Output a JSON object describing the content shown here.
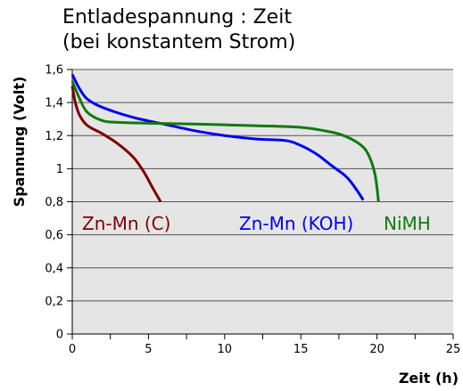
{
  "chart_data": {
    "type": "line",
    "title_lines": [
      "Entladespannung : Zeit",
      "(bei konstantem Strom)"
    ],
    "xlabel": "Zeit (h)",
    "ylabel": "Spannung (Volt)",
    "xlim": [
      0,
      25
    ],
    "ylim": [
      0,
      1.6
    ],
    "x_ticks": [
      0,
      5,
      10,
      15,
      20,
      25
    ],
    "x_tick_labels": [
      "0",
      "5",
      "10",
      "15",
      "20",
      "25"
    ],
    "y_ticks": [
      0,
      0.2,
      0.4,
      0.6,
      0.8,
      1.0,
      1.2,
      1.4,
      1.6
    ],
    "y_tick_labels": [
      "0",
      "0,2",
      "0,4",
      "0,6",
      "0,8",
      "1",
      "1,2",
      "1,4",
      "1,6"
    ],
    "grid": "horizontal",
    "background": "#e5e5e5",
    "series": [
      {
        "name": "Zn-Mn (C)",
        "color": "#7f0000",
        "points": [
          [
            0,
            1.5
          ],
          [
            0.2,
            1.4
          ],
          [
            0.5,
            1.32
          ],
          [
            1,
            1.26
          ],
          [
            2,
            1.21
          ],
          [
            3,
            1.15
          ],
          [
            4,
            1.07
          ],
          [
            4.7,
            0.98
          ],
          [
            5.3,
            0.88
          ],
          [
            5.8,
            0.8
          ]
        ]
      },
      {
        "name": "Zn-Mn (KOH)",
        "color": "#0000ee",
        "points": [
          [
            0,
            1.57
          ],
          [
            0.5,
            1.48
          ],
          [
            1,
            1.42
          ],
          [
            2,
            1.37
          ],
          [
            4,
            1.31
          ],
          [
            6,
            1.27
          ],
          [
            8,
            1.23
          ],
          [
            10,
            1.2
          ],
          [
            12,
            1.18
          ],
          [
            14,
            1.17
          ],
          [
            15,
            1.14
          ],
          [
            16,
            1.09
          ],
          [
            17,
            1.02
          ],
          [
            18,
            0.95
          ],
          [
            18.6,
            0.88
          ],
          [
            19.1,
            0.81
          ]
        ]
      },
      {
        "name": "NiMH",
        "color": "#107a10",
        "points": [
          [
            0,
            1.53
          ],
          [
            0.5,
            1.42
          ],
          [
            1,
            1.34
          ],
          [
            2,
            1.29
          ],
          [
            3,
            1.28
          ],
          [
            5,
            1.275
          ],
          [
            8,
            1.27
          ],
          [
            12,
            1.26
          ],
          [
            15,
            1.25
          ],
          [
            16.5,
            1.23
          ],
          [
            17.5,
            1.21
          ],
          [
            18.5,
            1.17
          ],
          [
            19.2,
            1.12
          ],
          [
            19.6,
            1.05
          ],
          [
            19.9,
            0.95
          ],
          [
            20.1,
            0.8
          ]
        ]
      }
    ]
  }
}
